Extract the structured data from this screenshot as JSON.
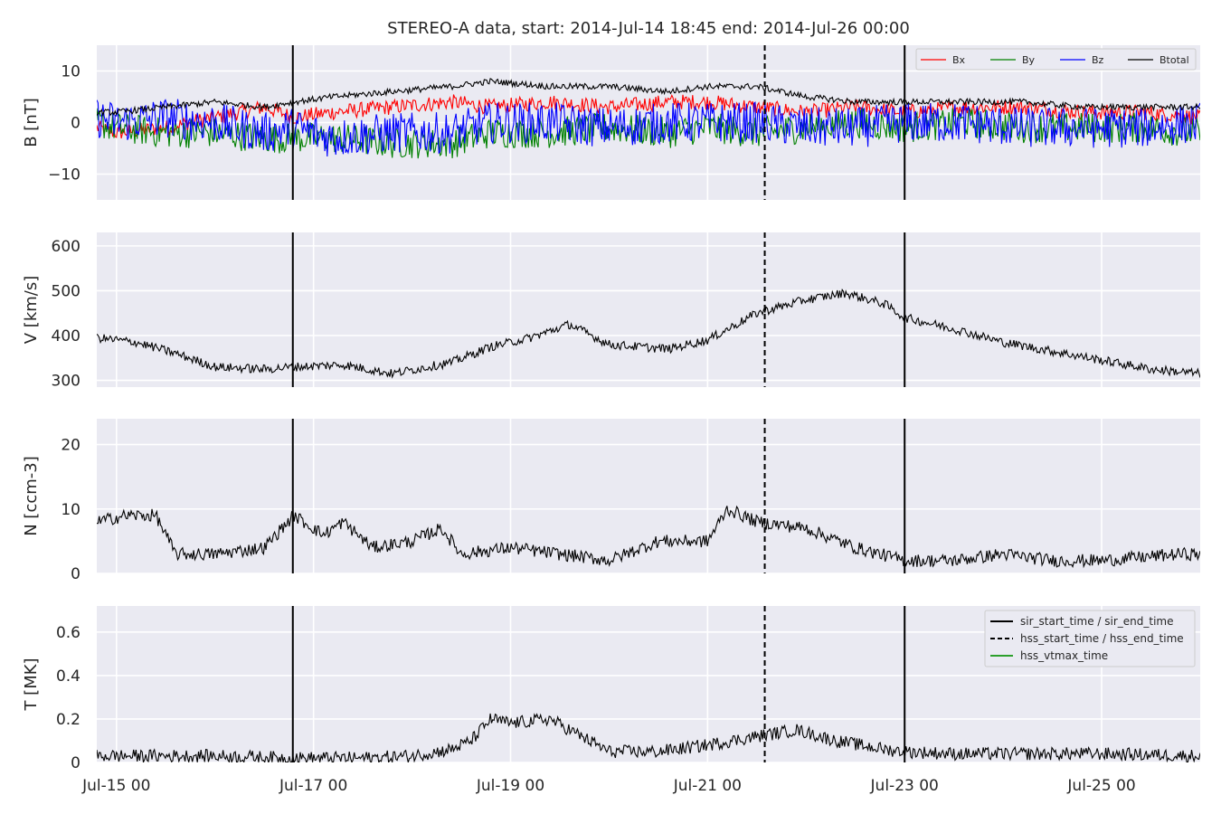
{
  "title": "STEREO-A data, start: 2014-Jul-14 18:45  end: 2014-Jul-26 00:00",
  "x_ticks": [
    {
      "label": "Jul-15 00",
      "day": 15.0
    },
    {
      "label": "Jul-17 00",
      "day": 17.0
    },
    {
      "label": "Jul-19 00",
      "day": 19.0
    },
    {
      "label": "Jul-21 00",
      "day": 21.0
    },
    {
      "label": "Jul-23 00",
      "day": 23.0
    },
    {
      "label": "Jul-25 00",
      "day": 25.0
    }
  ],
  "colors": {
    "background": "#eaeaf2",
    "grid": "#ffffff",
    "bx": "#ff0000",
    "by": "#008000",
    "bz": "#0000ff",
    "btotal": "#000000",
    "hss_vtmax": "#2ca02c"
  },
  "events": [
    {
      "name": "sir_start_time",
      "day": 16.79,
      "style": "solid"
    },
    {
      "name": "hss_start_time",
      "day": 21.58,
      "style": "dashed"
    },
    {
      "name": "sir_end_time",
      "day": 23.0,
      "style": "solid"
    }
  ],
  "event_legend": [
    {
      "label": "sir_start_time / sir_end_time",
      "style": "solid",
      "color": "#000000"
    },
    {
      "label": "hss_start_time / hss_end_time",
      "style": "dashed",
      "color": "#000000"
    },
    {
      "label": "hss_vtmax_time",
      "style": "solid",
      "color": "#2ca02c"
    }
  ],
  "chart_data": [
    {
      "type": "line",
      "ylabel": "B [nT]",
      "ylim": [
        -15,
        15
      ],
      "yticks": [
        -10,
        0,
        10
      ],
      "grid": true,
      "legend_position": "top-right",
      "x_units": "day of July 2014",
      "xlim": [
        14.8,
        26.0
      ],
      "series": [
        {
          "name": "Bx",
          "x": [
            14.8,
            15.0,
            15.5,
            16.0,
            16.5,
            16.8,
            17.2,
            17.8,
            18.4,
            18.8,
            19.4,
            20.0,
            20.6,
            21.0,
            21.5,
            22.0,
            22.5,
            23.0,
            23.6,
            24.2,
            24.8,
            25.4,
            26.0
          ],
          "y": [
            -1,
            -2,
            -1,
            1,
            3,
            1,
            2,
            3,
            4,
            3,
            4,
            3,
            4,
            4,
            3,
            2,
            3,
            2,
            3,
            3,
            2,
            2,
            1
          ],
          "noise": 1.5
        },
        {
          "name": "By",
          "x": [
            14.8,
            15.0,
            15.5,
            16.0,
            16.5,
            16.8,
            17.2,
            17.8,
            18.4,
            18.8,
            19.4,
            20.0,
            20.6,
            21.0,
            21.5,
            22.0,
            22.5,
            23.0,
            23.6,
            24.2,
            24.8,
            25.4,
            26.0
          ],
          "y": [
            0,
            -1,
            -2,
            -2,
            -3,
            -3,
            -3,
            -4,
            -4,
            -2,
            -2,
            -1,
            -2,
            -1,
            -2,
            -1,
            0,
            -1,
            0,
            -1,
            -1,
            -1,
            -2
          ],
          "noise": 3.0
        },
        {
          "name": "Bz",
          "x": [
            14.8,
            15.0,
            15.5,
            16.0,
            16.5,
            16.8,
            17.2,
            17.8,
            18.4,
            18.8,
            19.4,
            20.0,
            20.6,
            21.0,
            21.5,
            22.0,
            22.5,
            23.0,
            23.6,
            24.2,
            24.8,
            25.4,
            26.0
          ],
          "y": [
            1,
            0,
            1,
            0,
            -2,
            -1,
            -3,
            -2,
            -2,
            0,
            0,
            -1,
            0,
            0,
            0,
            -1,
            -1,
            0,
            0,
            -1,
            -1,
            -1,
            0
          ],
          "noise": 4.0
        },
        {
          "name": "Btotal",
          "x": [
            14.8,
            15.0,
            15.5,
            16.0,
            16.5,
            16.8,
            17.2,
            17.8,
            18.4,
            18.8,
            19.4,
            20.0,
            20.6,
            21.0,
            21.5,
            22.0,
            22.5,
            23.0,
            23.6,
            24.2,
            24.8,
            25.4,
            26.0
          ],
          "y": [
            2,
            2,
            3,
            4,
            3,
            4,
            5,
            6,
            7,
            8,
            7,
            7,
            6,
            7,
            7,
            5,
            4,
            4,
            4,
            4,
            3,
            3,
            3
          ],
          "noise": 0.6
        }
      ]
    },
    {
      "type": "line",
      "ylabel": "V [km/s]",
      "ylim": [
        285,
        630
      ],
      "yticks": [
        300,
        400,
        500,
        600
      ],
      "grid": true,
      "x_units": "day of July 2014",
      "xlim": [
        14.8,
        26.0
      ],
      "series": [
        {
          "x": [
            14.8,
            15.2,
            15.6,
            16.0,
            16.5,
            16.8,
            17.3,
            17.8,
            18.4,
            18.8,
            19.2,
            19.6,
            20.0,
            20.6,
            21.0,
            21.5,
            22.0,
            22.4,
            22.8,
            23.0,
            23.5,
            24.0,
            24.5,
            25.0,
            25.5,
            26.0
          ],
          "y": [
            395,
            385,
            360,
            330,
            325,
            330,
            335,
            315,
            340,
            375,
            395,
            425,
            380,
            370,
            390,
            450,
            480,
            495,
            470,
            440,
            415,
            385,
            365,
            345,
            325,
            315
          ],
          "noise": 10
        }
      ]
    },
    {
      "type": "line",
      "ylabel": "N [ccm-3]",
      "ylim": [
        0,
        24
      ],
      "yticks": [
        0,
        10,
        20
      ],
      "grid": true,
      "x_units": "day of July 2014",
      "xlim": [
        14.8,
        26.0
      ],
      "series": [
        {
          "x": [
            14.8,
            15.1,
            15.4,
            15.6,
            16.0,
            16.5,
            16.8,
            17.1,
            17.3,
            17.6,
            18.0,
            18.3,
            18.5,
            19.0,
            19.5,
            20.0,
            20.5,
            21.0,
            21.2,
            21.5,
            22.0,
            22.5,
            23.0,
            23.5,
            24.0,
            24.5,
            25.0,
            25.8,
            26.0
          ],
          "y": [
            8,
            9,
            9,
            3,
            3,
            4,
            9,
            6,
            8,
            4,
            5,
            7,
            3,
            4,
            3,
            2,
            5,
            5,
            10,
            8,
            7,
            4,
            2,
            2,
            3,
            2,
            2,
            3,
            3
          ],
          "noise": 1.0
        }
      ]
    },
    {
      "type": "line",
      "ylabel": "T [MK]",
      "ylim": [
        0,
        0.72
      ],
      "yticks": [
        0.0,
        0.2,
        0.4,
        0.6
      ],
      "grid": true,
      "x_units": "day of July 2014",
      "xlim": [
        14.8,
        26.0
      ],
      "series": [
        {
          "x": [
            14.8,
            15.5,
            16.0,
            16.8,
            17.5,
            18.0,
            18.4,
            18.6,
            18.8,
            19.0,
            19.4,
            19.8,
            20.0,
            20.5,
            21.0,
            21.5,
            21.9,
            22.3,
            22.8,
            23.0,
            23.5,
            24.0,
            25.0,
            26.0
          ],
          "y": [
            0.03,
            0.03,
            0.03,
            0.02,
            0.02,
            0.03,
            0.06,
            0.1,
            0.2,
            0.18,
            0.2,
            0.1,
            0.05,
            0.05,
            0.08,
            0.12,
            0.15,
            0.1,
            0.06,
            0.05,
            0.04,
            0.04,
            0.04,
            0.03
          ],
          "noise": 0.03
        }
      ]
    }
  ]
}
